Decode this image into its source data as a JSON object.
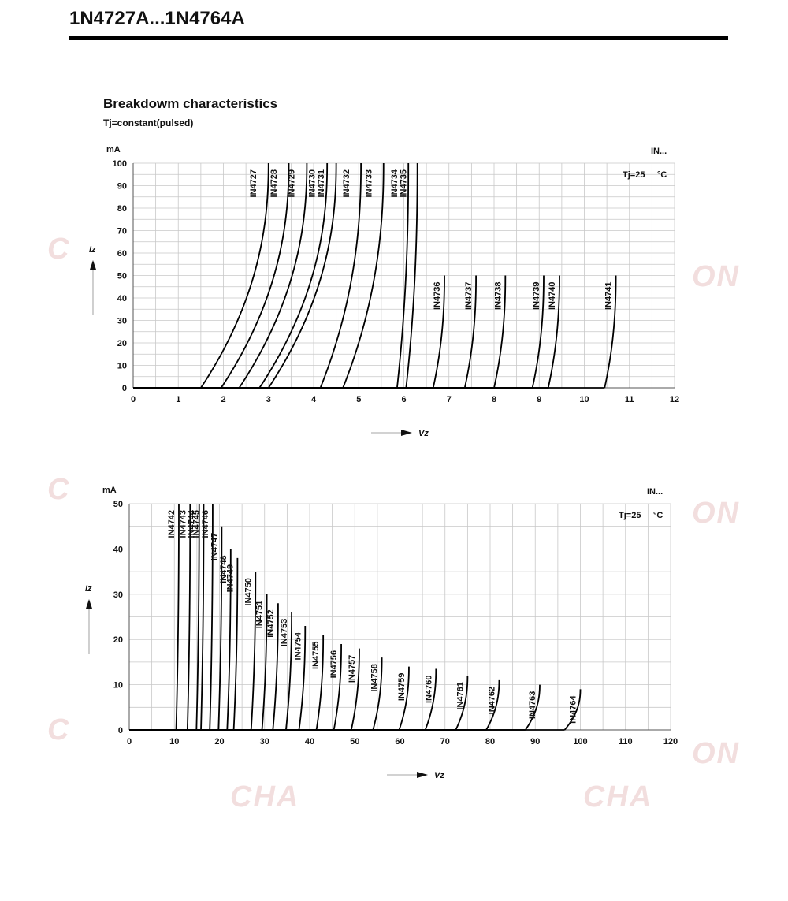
{
  "header": {
    "title": "1N4727A...1N4764A"
  },
  "section": {
    "title": "Breakdowm characteristics",
    "subtitle": "Tj=constant(pulsed)"
  },
  "watermark": {
    "text_left": "C",
    "text_right": "ON",
    "text_bottom": "CHA"
  },
  "chart_data": [
    {
      "type": "line",
      "ylabel": "Iz",
      "yunit": "mA",
      "xlabel": "Vz",
      "legend_label": "IN...",
      "condition_label": "Tj=25",
      "condition_unit": "°C",
      "xlim": [
        0,
        12
      ],
      "ylim": [
        0,
        100
      ],
      "xticks": [
        0,
        1,
        2,
        3,
        4,
        5,
        6,
        7,
        8,
        9,
        10,
        11,
        12
      ],
      "yticks": [
        0,
        10,
        20,
        30,
        40,
        50,
        60,
        70,
        80,
        90,
        100
      ],
      "grid": true,
      "series": [
        {
          "name": "IN4727",
          "vz": 3.0,
          "imax": 100
        },
        {
          "name": "IN4728",
          "vz": 3.45,
          "imax": 100
        },
        {
          "name": "IN4729",
          "vz": 3.85,
          "imax": 100
        },
        {
          "name": "IN4730",
          "vz": 4.3,
          "imax": 100
        },
        {
          "name": "IN4731",
          "vz": 4.5,
          "imax": 100
        },
        {
          "name": "IN4732",
          "vz": 5.05,
          "imax": 100
        },
        {
          "name": "IN4733",
          "vz": 5.55,
          "imax": 100
        },
        {
          "name": "IN4734",
          "vz": 6.1,
          "imax": 100
        },
        {
          "name": "IN4735",
          "vz": 6.3,
          "imax": 100
        },
        {
          "name": "IN4736",
          "vz": 6.9,
          "imax": 50
        },
        {
          "name": "IN4737",
          "vz": 7.6,
          "imax": 50
        },
        {
          "name": "IN4738",
          "vz": 8.25,
          "imax": 50
        },
        {
          "name": "IN4739",
          "vz": 9.1,
          "imax": 50
        },
        {
          "name": "IN4740",
          "vz": 9.45,
          "imax": 50
        },
        {
          "name": "IN4741",
          "vz": 10.7,
          "imax": 50
        }
      ]
    },
    {
      "type": "line",
      "ylabel": "Iz",
      "yunit": "mA",
      "xlabel": "Vz",
      "legend_label": "IN...",
      "condition_label": "Tj=25",
      "condition_unit": "°C",
      "xlim": [
        0,
        120
      ],
      "ylim": [
        0,
        50
      ],
      "xticks": [
        0,
        10,
        20,
        30,
        40,
        50,
        60,
        70,
        80,
        90,
        100,
        110,
        120
      ],
      "yticks": [
        0,
        10,
        20,
        30,
        40,
        50
      ],
      "grid": true,
      "series": [
        {
          "name": "IN4742",
          "vz": 11,
          "imax": 50
        },
        {
          "name": "IN4743",
          "vz": 13.5,
          "imax": 50
        },
        {
          "name": "IN4744",
          "vz": 15.5,
          "imax": 50
        },
        {
          "name": "IN4745",
          "vz": 16.5,
          "imax": 50
        },
        {
          "name": "IN4746",
          "vz": 18.5,
          "imax": 50
        },
        {
          "name": "IN4747",
          "vz": 20.5,
          "imax": 45
        },
        {
          "name": "IN4748",
          "vz": 22.5,
          "imax": 40
        },
        {
          "name": "IN4749",
          "vz": 24,
          "imax": 38
        },
        {
          "name": "IN4750",
          "vz": 28,
          "imax": 35
        },
        {
          "name": "IN4751",
          "vz": 30.5,
          "imax": 30
        },
        {
          "name": "IN4752",
          "vz": 33,
          "imax": 28
        },
        {
          "name": "IN4753",
          "vz": 36,
          "imax": 26
        },
        {
          "name": "IN4754",
          "vz": 39,
          "imax": 23
        },
        {
          "name": "IN4755",
          "vz": 43,
          "imax": 21
        },
        {
          "name": "IN4756",
          "vz": 47,
          "imax": 19
        },
        {
          "name": "IN4757",
          "vz": 51,
          "imax": 18
        },
        {
          "name": "IN4758",
          "vz": 56,
          "imax": 16
        },
        {
          "name": "IN4759",
          "vz": 62,
          "imax": 14
        },
        {
          "name": "IN4760",
          "vz": 68,
          "imax": 13.5
        },
        {
          "name": "IN4761",
          "vz": 75,
          "imax": 12
        },
        {
          "name": "IN4762",
          "vz": 82,
          "imax": 11
        },
        {
          "name": "IN4763",
          "vz": 91,
          "imax": 10
        },
        {
          "name": "IN4764",
          "vz": 100,
          "imax": 9
        }
      ]
    }
  ]
}
